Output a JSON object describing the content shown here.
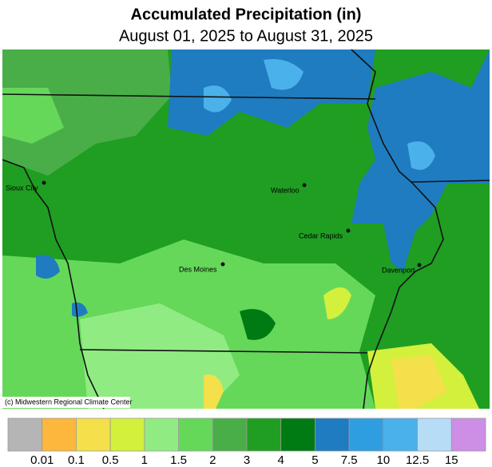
{
  "header": {
    "title": "Accumulated Precipitation (in)",
    "subtitle": "August 01, 2025 to August 31, 2025"
  },
  "map": {
    "cities": [
      "Sioux City",
      "Waterloo",
      "Cedar Rapids",
      "Des Moines",
      "Davenport"
    ],
    "credit": "(c) Midwestern Regional Climate Center"
  },
  "legend": {
    "colors": [
      "#b5b5b5",
      "#fdb73c",
      "#f4e04a",
      "#d3f03c",
      "#90ec82",
      "#65d85a",
      "#49ae48",
      "#1f9e22",
      "#007a12",
      "#1f7cc0",
      "#2f9ee0",
      "#4bb1ea",
      "#b7dcf5",
      "#cd8ee6"
    ],
    "labels": [
      "0.01",
      "0.1",
      "0.5",
      "1",
      "1.5",
      "2",
      "3",
      "4",
      "5",
      "7.5",
      "10",
      "12.5",
      "15"
    ]
  }
}
